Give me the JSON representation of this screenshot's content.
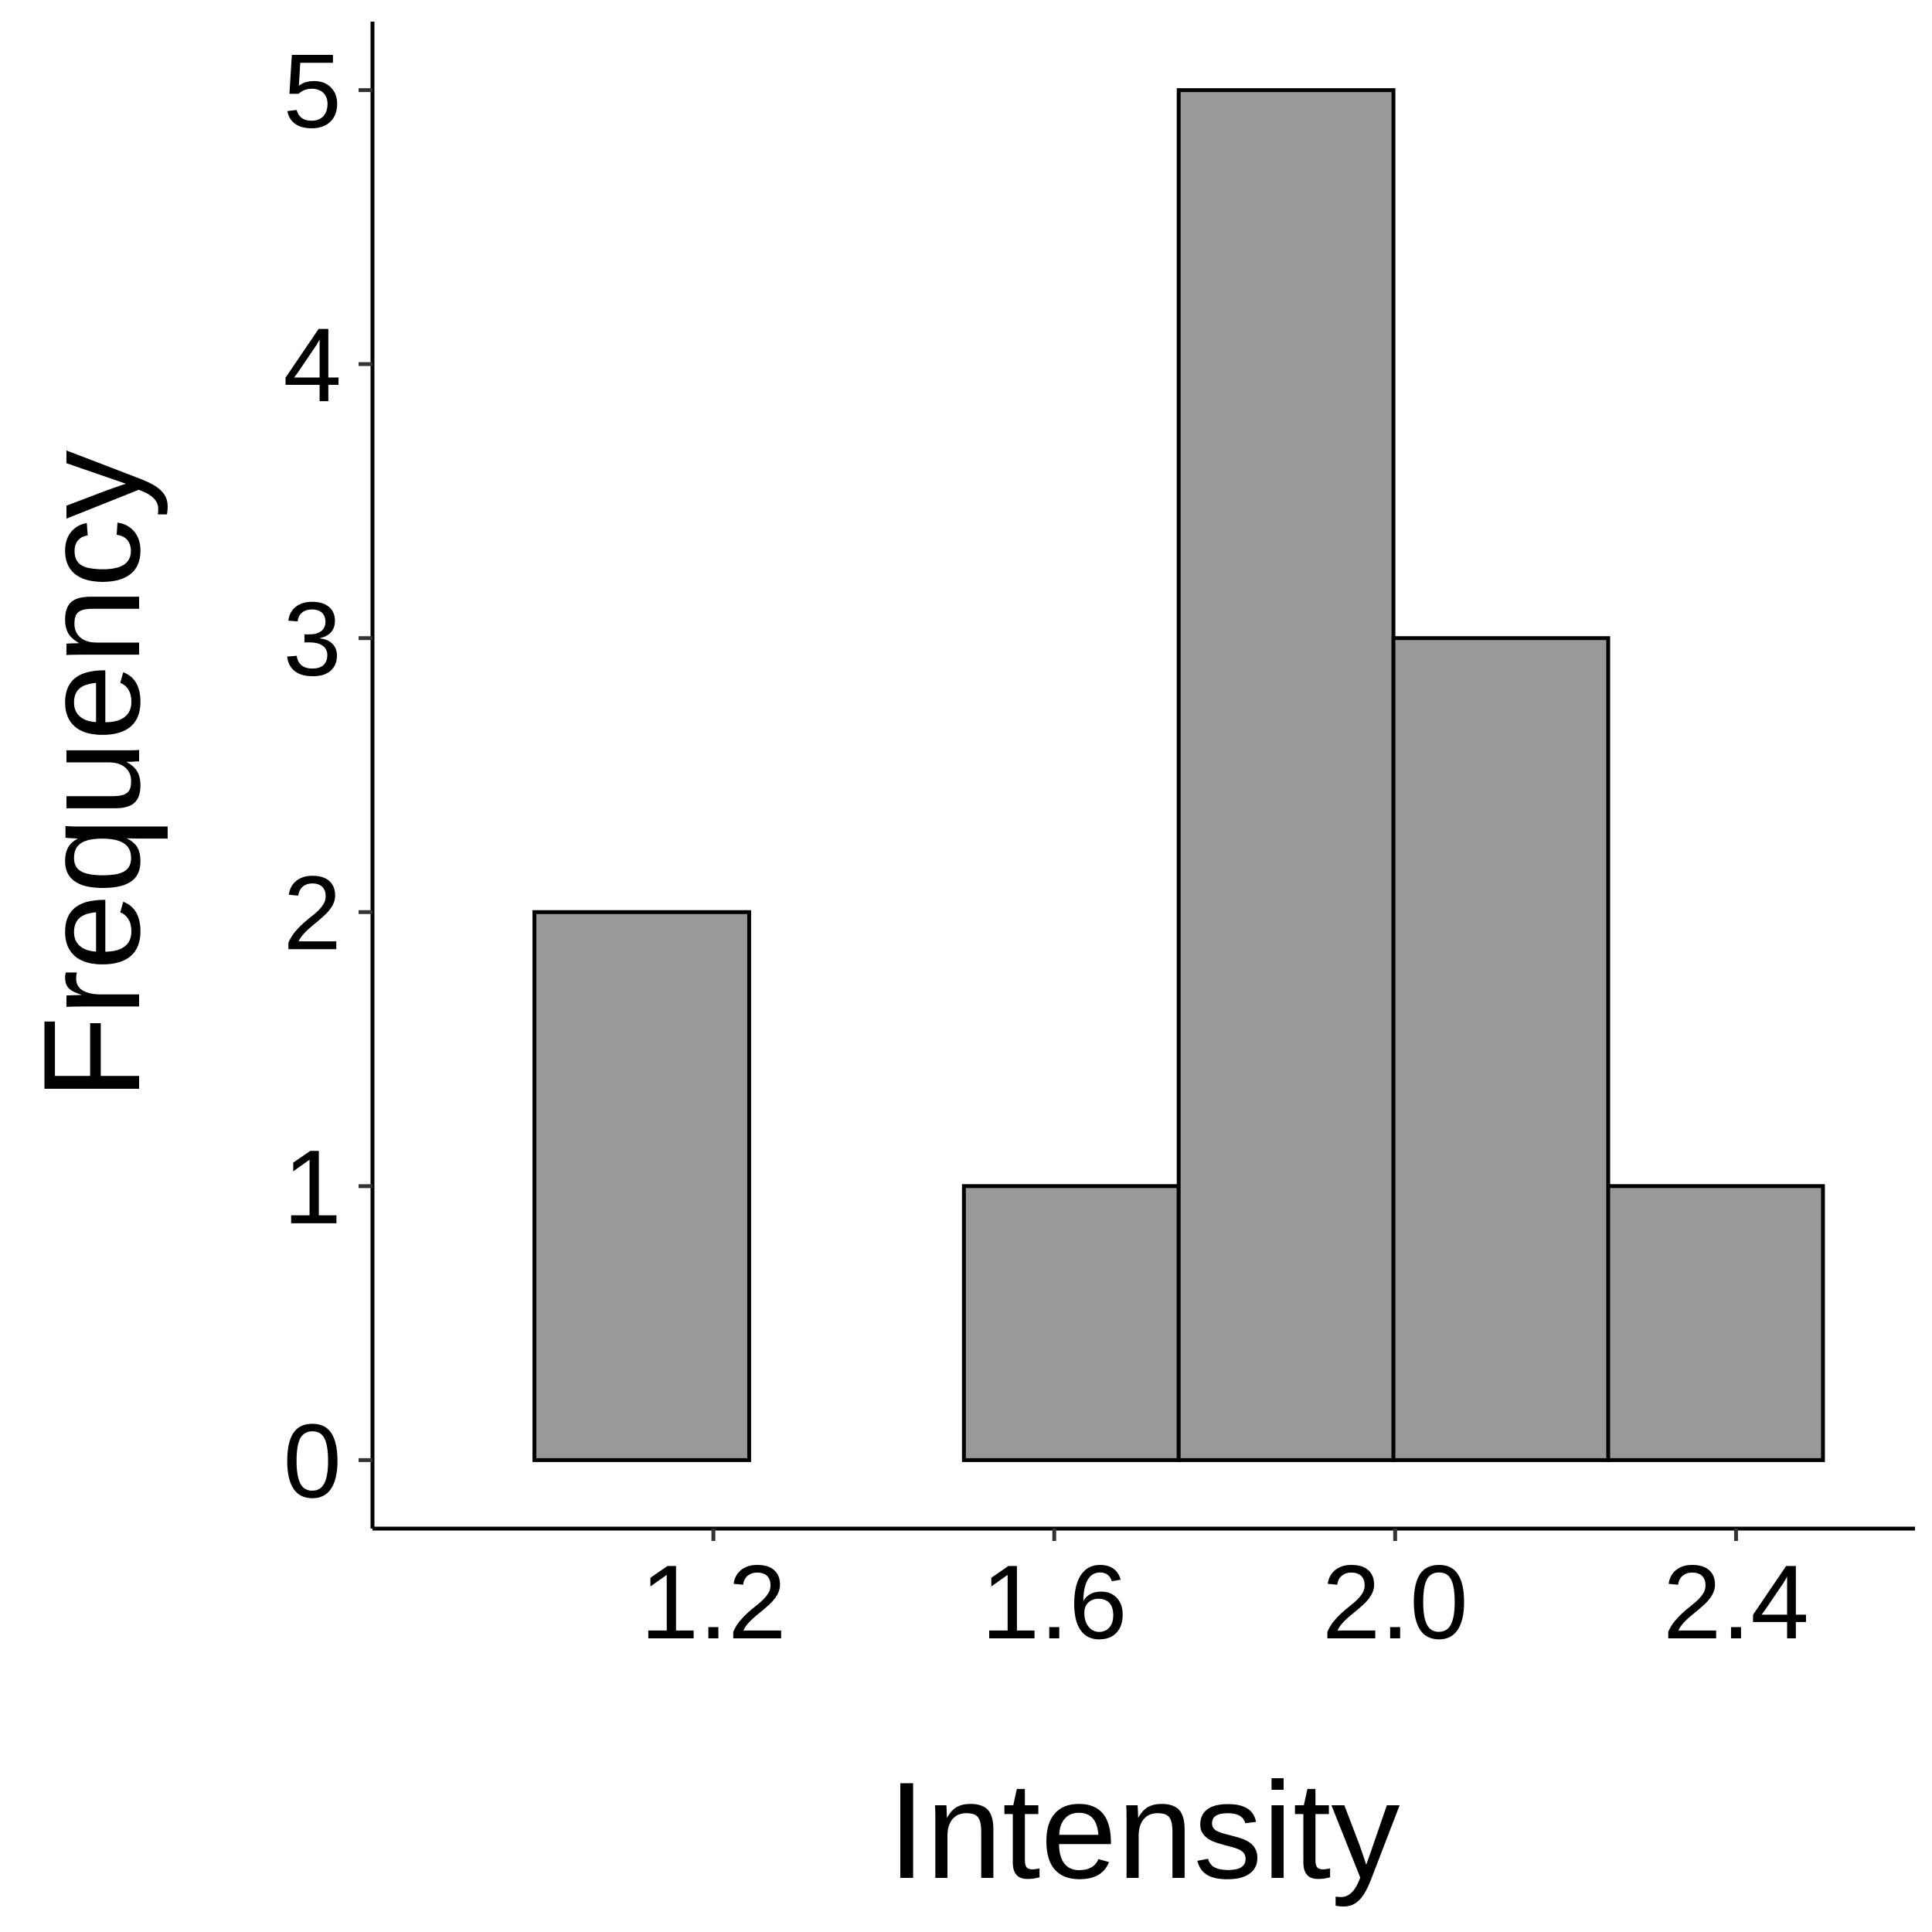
{
  "chart_data": {
    "type": "bar",
    "subtype": "histogram",
    "title": "",
    "xlabel": "Intensity",
    "ylabel": "Frequency",
    "bins": [
      {
        "x_start": 0.99,
        "x_end": 1.242,
        "count": 2
      },
      {
        "x_start": 1.242,
        "x_end": 1.494,
        "count": 0
      },
      {
        "x_start": 1.494,
        "x_end": 1.746,
        "count": 1
      },
      {
        "x_start": 1.746,
        "x_end": 1.998,
        "count": 5
      },
      {
        "x_start": 1.998,
        "x_end": 2.25,
        "count": 3
      },
      {
        "x_start": 2.25,
        "x_end": 2.502,
        "count": 1
      }
    ],
    "xticks": [
      1.2,
      1.6,
      2.0,
      2.4
    ],
    "xtick_labels": [
      "1.2",
      "1.6",
      "2.0",
      "2.4"
    ],
    "yticks": [
      0,
      1,
      2,
      3,
      4,
      5
    ],
    "ytick_labels": [
      "0",
      "1",
      "2",
      "3",
      "4",
      "5"
    ],
    "xlim": [
      0.8,
      2.61
    ],
    "ylim": [
      -0.25,
      5.25
    ],
    "grid": false,
    "legend": "none",
    "colors": {
      "bar_fill": "#999999",
      "bar_stroke": "#000000",
      "axis": "#000000"
    }
  }
}
